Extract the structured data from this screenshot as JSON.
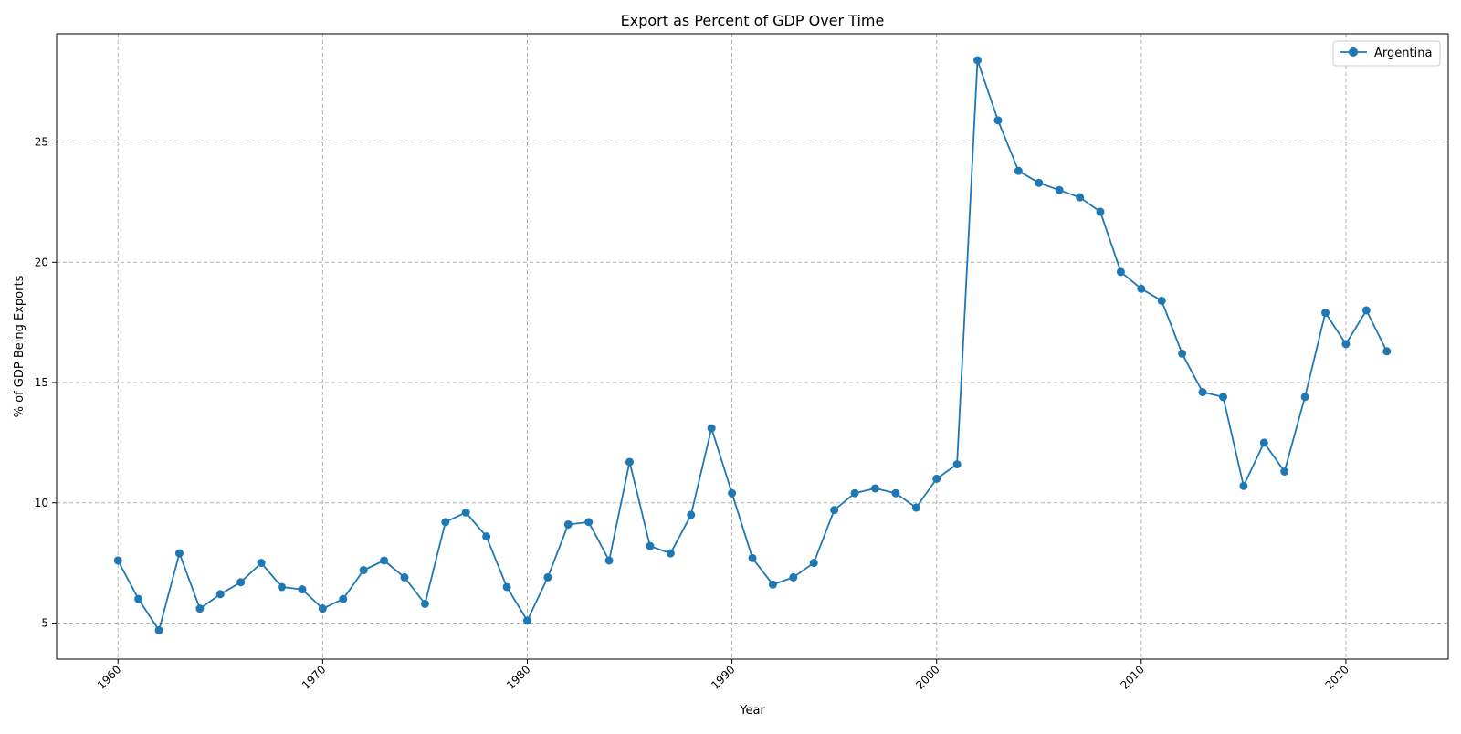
{
  "chart_data": {
    "type": "line",
    "title": "Export as Percent of GDP Over Time",
    "xlabel": "Year",
    "ylabel": "% of GDP Being Exports",
    "xlim": [
      1957,
      2025
    ],
    "ylim": [
      3.5,
      29.5
    ],
    "xticks": [
      1960,
      1970,
      1980,
      1990,
      2000,
      2010,
      2020
    ],
    "yticks": [
      5,
      10,
      15,
      20,
      25
    ],
    "xtick_labels": [
      "1960",
      "1970",
      "1980",
      "1990",
      "2000",
      "2010",
      "2020"
    ],
    "ytick_labels": [
      "5",
      "10",
      "15",
      "20",
      "25"
    ],
    "grid": true,
    "legend_position": "top-right",
    "color": "#1f77b4",
    "series": [
      {
        "name": "Argentina",
        "x": [
          1960,
          1961,
          1962,
          1963,
          1964,
          1965,
          1966,
          1967,
          1968,
          1969,
          1970,
          1971,
          1972,
          1973,
          1974,
          1975,
          1976,
          1977,
          1978,
          1979,
          1980,
          1981,
          1982,
          1983,
          1984,
          1985,
          1986,
          1987,
          1988,
          1989,
          1990,
          1991,
          1992,
          1993,
          1994,
          1995,
          1996,
          1997,
          1998,
          1999,
          2000,
          2001,
          2002,
          2003,
          2004,
          2005,
          2006,
          2007,
          2008,
          2009,
          2010,
          2011,
          2012,
          2013,
          2014,
          2015,
          2016,
          2017,
          2018,
          2019,
          2020,
          2021,
          2022
        ],
        "values": [
          7.6,
          6.0,
          4.7,
          7.9,
          5.6,
          6.2,
          6.7,
          7.5,
          6.5,
          6.4,
          5.6,
          6.0,
          7.2,
          7.6,
          6.9,
          5.8,
          9.2,
          9.6,
          8.6,
          6.5,
          5.1,
          6.9,
          9.1,
          9.2,
          7.6,
          11.7,
          8.2,
          7.9,
          9.5,
          13.1,
          10.4,
          7.7,
          6.6,
          6.9,
          7.5,
          9.7,
          10.4,
          10.6,
          10.4,
          9.8,
          11.0,
          11.6,
          28.4,
          25.9,
          23.8,
          23.3,
          23.0,
          22.7,
          22.1,
          19.6,
          18.9,
          18.4,
          16.2,
          14.6,
          14.4,
          10.7,
          12.5,
          11.3,
          14.4,
          17.9,
          16.6,
          18.0,
          16.3
        ]
      }
    ]
  }
}
